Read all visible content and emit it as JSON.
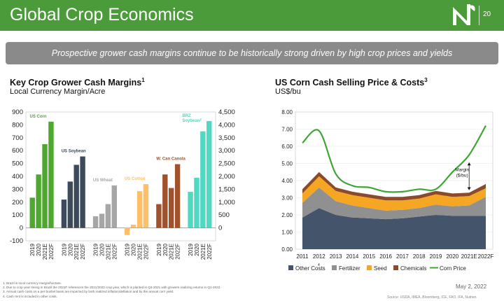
{
  "page": {
    "title": "Global Crop Economics",
    "page_number": "20",
    "date": "May 2, 2022",
    "banner": "Prospective grower cash margins continue to be historically strong driven by high crop prices and yields",
    "source": "Source: USDA, IMEA, Bloomberg, ICE, FAO, IFA, Nutrien"
  },
  "colors": {
    "brand_green": "#4b9b3a",
    "banner_gray": "#8a8a8a"
  },
  "left_chart": {
    "title": "Key Crop Grower Cash Margins",
    "title_sup": "1",
    "subtitle": "Local Currency Margin/Acre"
  },
  "right_chart": {
    "title": "US Corn Cash Selling Price & Costs",
    "title_sup": "3",
    "subtitle": "US$/bu"
  },
  "footnotes": [
    "1.    Brazil is local currency margin/hectare.",
    "2.    Due to crop year timing in Brazil the 2022F references the 2021/2022 crop year, which is planted in Q3-2021 with growers realizing returns in Q1-2022.",
    "3.    Annual cash costs on a per bushel basis are impacted by both realized inflation/deflation and by the annual corn yield.",
    "4.    Cash rent is included in other costs."
  ],
  "chart_data": [
    {
      "type": "bar",
      "title": "Key Crop Grower Cash Margins",
      "ylabel": "Local Currency Margin/Acre",
      "ylim": [
        -100,
        900
      ],
      "y_ticks": [
        "-100",
        "0",
        "100",
        "200",
        "300",
        "400",
        "500",
        "600",
        "700",
        "800",
        "900"
      ],
      "y2lim": [
        0,
        4500
      ],
      "y2_ticks": [
        "0",
        "500",
        "1,000",
        "1,500",
        "2,000",
        "2,500",
        "3,000",
        "3,500",
        "4,000",
        "4,500"
      ],
      "categories": [
        "2019",
        "2020",
        "2021E",
        "2022F"
      ],
      "series": [
        {
          "name": "US Corn",
          "axis": "left",
          "color": "#4ea72e",
          "values": [
            235,
            415,
            650,
            825
          ]
        },
        {
          "name": "US Soybean",
          "axis": "left",
          "color": "#3c4a5c",
          "values": [
            220,
            360,
            490,
            555
          ]
        },
        {
          "name": "US Wheat",
          "axis": "left",
          "color": "#a6a6a6",
          "values": [
            90,
            110,
            185,
            330
          ]
        },
        {
          "name": "US Cotton",
          "axis": "left",
          "color": "#ffbe6a",
          "values": [
            -55,
            25,
            285,
            340
          ]
        },
        {
          "name": "W. Can Canola",
          "axis": "left",
          "color": "#a0522d",
          "values": [
            185,
            415,
            310,
            495
          ]
        },
        {
          "name": "BRZ Soybean",
          "name_sup": "2",
          "axis": "right",
          "color": "#4fd8c2",
          "values": [
            1400,
            1950,
            3750,
            4150
          ]
        }
      ]
    },
    {
      "type": "area",
      "title": "US Corn Cash Selling Price & Costs",
      "ylabel": "US$/bu",
      "ylim": [
        0,
        8
      ],
      "y_ticks": [
        "0.00",
        "1.00",
        "2.00",
        "3.00",
        "4.00",
        "5.00",
        "6.00",
        "7.00",
        "8.00"
      ],
      "x": [
        "2011",
        "2012",
        "2013",
        "2014",
        "2015",
        "2016",
        "2017",
        "2018",
        "2019",
        "2020",
        "2021E",
        "2022F"
      ],
      "stacked_series": [
        {
          "name": "Other Costs",
          "name_sup": "4",
          "color": "#44546a",
          "values": [
            1.85,
            2.4,
            2.0,
            1.85,
            1.8,
            1.75,
            1.8,
            1.9,
            2.0,
            1.95,
            1.95,
            1.95
          ]
        },
        {
          "name": "Fertilizer",
          "color": "#909090",
          "values": [
            0.85,
            1.2,
            0.8,
            0.7,
            0.6,
            0.5,
            0.5,
            0.5,
            0.6,
            0.55,
            0.6,
            1.1
          ]
        },
        {
          "name": "Seed",
          "color": "#f5a623",
          "values": [
            0.55,
            0.65,
            0.6,
            0.6,
            0.6,
            0.6,
            0.55,
            0.55,
            0.6,
            0.55,
            0.55,
            0.5
          ]
        },
        {
          "name": "Chemicals",
          "color": "#8b4a2b",
          "values": [
            0.25,
            0.25,
            0.2,
            0.2,
            0.2,
            0.2,
            0.2,
            0.2,
            0.2,
            0.2,
            0.2,
            0.25
          ]
        }
      ],
      "line_series": {
        "name": "Corn Price",
        "color": "#3fa535",
        "values": [
          6.2,
          6.9,
          4.4,
          3.7,
          3.6,
          3.35,
          3.35,
          3.5,
          3.5,
          4.5,
          5.5,
          7.2
        ]
      },
      "annotation": "Margin ($/bu)"
    }
  ]
}
